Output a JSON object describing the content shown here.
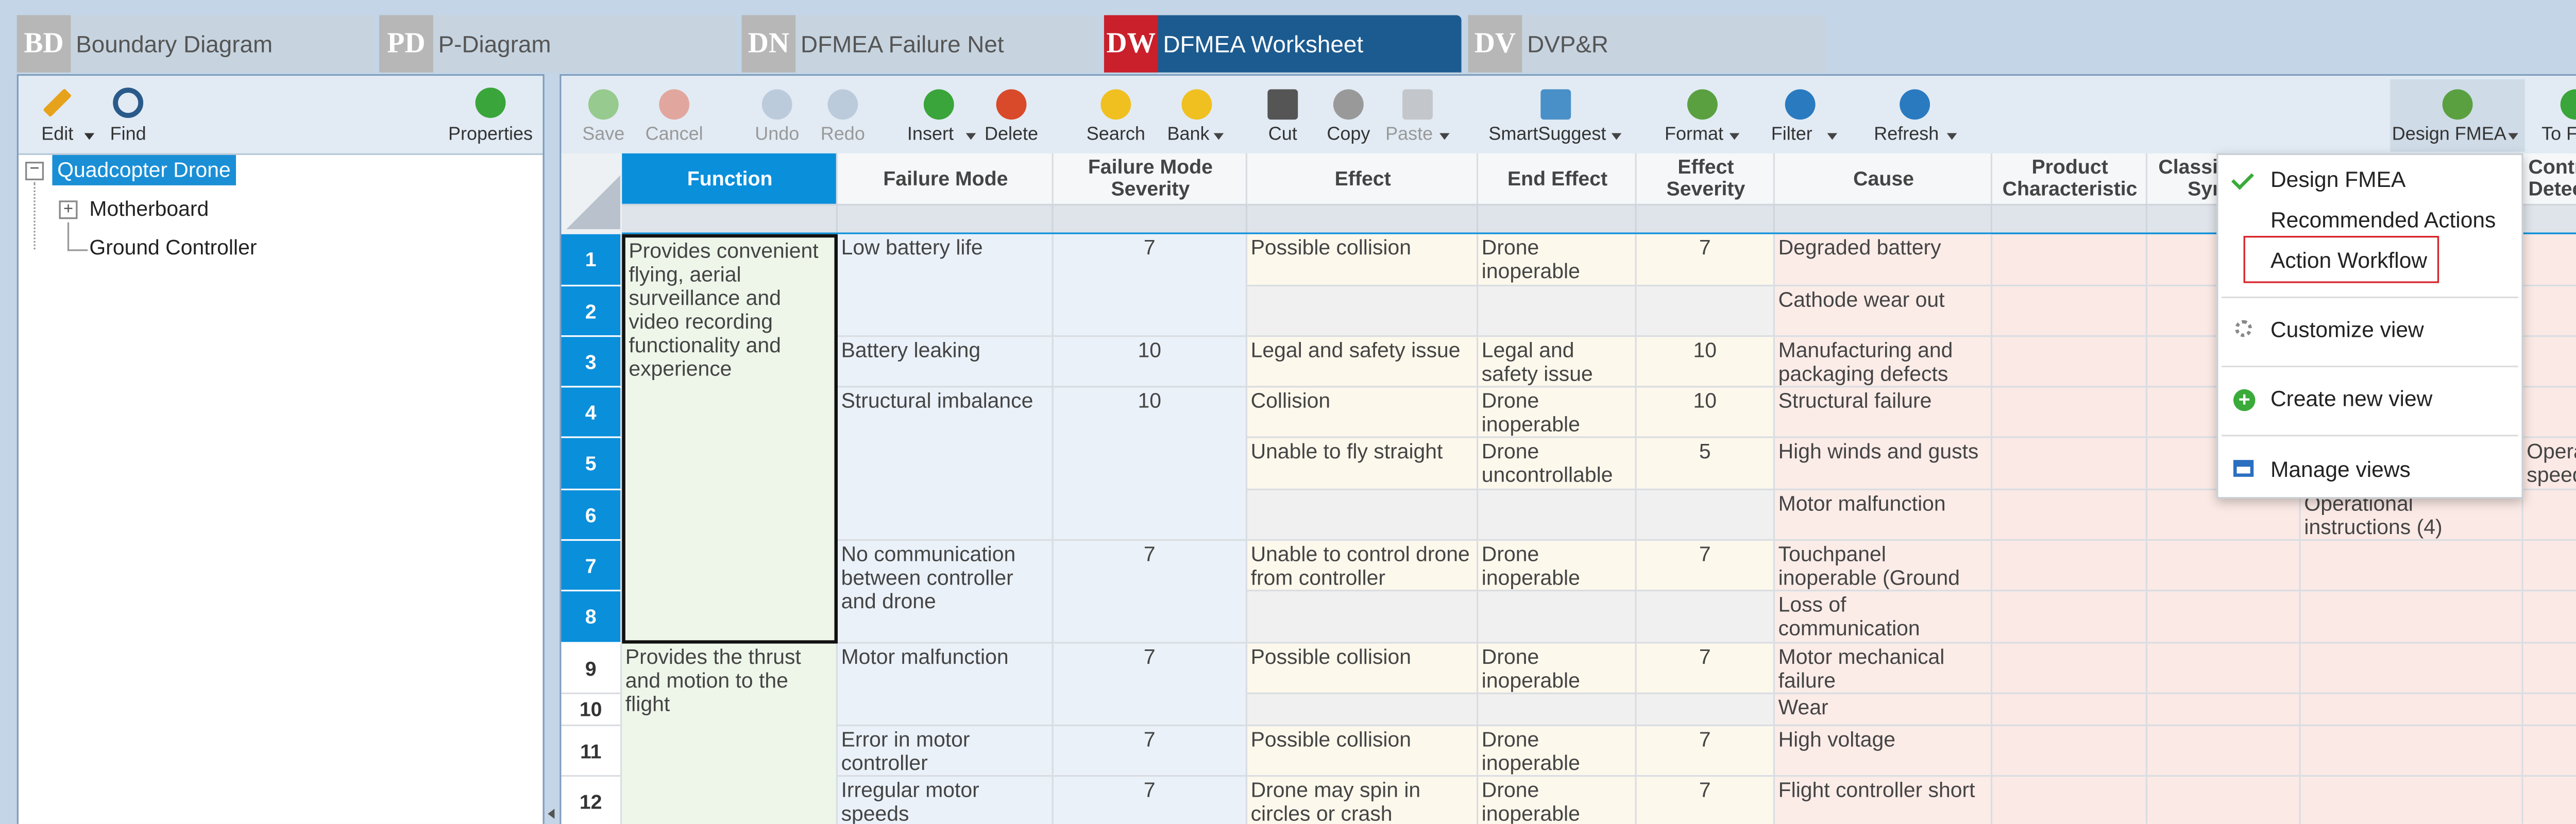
{
  "tabs": [
    {
      "badge": "BD",
      "label": "Boundary Diagram"
    },
    {
      "badge": "PD",
      "label": "P-Diagram"
    },
    {
      "badge": "DN",
      "label": "DFMEA Failure Net"
    },
    {
      "badge": "DW",
      "label": "DFMEA Worksheet"
    },
    {
      "badge": "DV",
      "label": "DVP&R"
    }
  ],
  "left_toolbar": [
    "Edit",
    "Find",
    "Properties"
  ],
  "tree": [
    "Quadcopter Drone",
    "Motherboard",
    "Ground Controller"
  ],
  "toolbar": [
    "Save",
    "Cancel",
    "Undo",
    "Redo",
    "Insert",
    "Delete",
    "Search",
    "Bank",
    "Cut",
    "Copy",
    "Paste",
    "SmartSuggest",
    "Format",
    "Filter",
    "Refresh",
    "Design FMEA",
    "To Form"
  ],
  "table": {
    "headers": [
      "Function",
      "Failure Mode",
      "Failure Mode Severity",
      "Effect",
      "End Effect",
      "Effect Severity",
      "Cause",
      "Product Characteristic",
      "Classification Symbol",
      "Controls Detection"
    ],
    "row_numbers": [
      "1",
      "2",
      "3",
      "4",
      "5",
      "6",
      "7",
      "8",
      "9",
      "10",
      "11",
      "12"
    ],
    "cells": [
      "Provides convenient flying, aerial surveillance and video recording functionality and experience",
      "Provides the thrust and motion to the flight",
      "Low battery life",
      "Battery leaking",
      "Structural imbalance",
      "No communication between controller and drone",
      "Motor malfunction",
      "Error in motor controller",
      "Irregular motor speeds",
      "7",
      "10",
      "10",
      "7",
      "7",
      "7",
      "7",
      "Possible collision",
      "Legal and safety issue",
      "Collision",
      "Unable to fly straight",
      "Unable to control drone from controller",
      "Possible collision",
      "Possible collision",
      "Drone may spin in circles or crash",
      "Drone inoperable",
      "Legal and safety issue",
      "Drone inoperable",
      "Drone uncontrollable",
      "Drone inoperable",
      "Drone inoperable",
      "Drone inoperable",
      "Drone inoperable",
      "7",
      "10",
      "10",
      "5",
      "7",
      "7",
      "7",
      "7",
      "Degraded battery",
      "Cathode wear out",
      "Manufacturing and packaging defects",
      "Structural failure",
      "High winds and gusts",
      "Motor malfunction",
      "Touchpanel inoperable (Ground Controller)",
      "Loss of communication (Ground Controller)",
      "Motor mechanical failure",
      "Wear",
      "High voltage",
      "Flight controller short",
      "Operational instructions (4)",
      "Operate speed ("
    ]
  },
  "menu": {
    "items": [
      "Design FMEA",
      "Recommended Actions",
      "Action Workflow",
      "Customize view",
      "Create new view",
      "Manage views"
    ]
  }
}
